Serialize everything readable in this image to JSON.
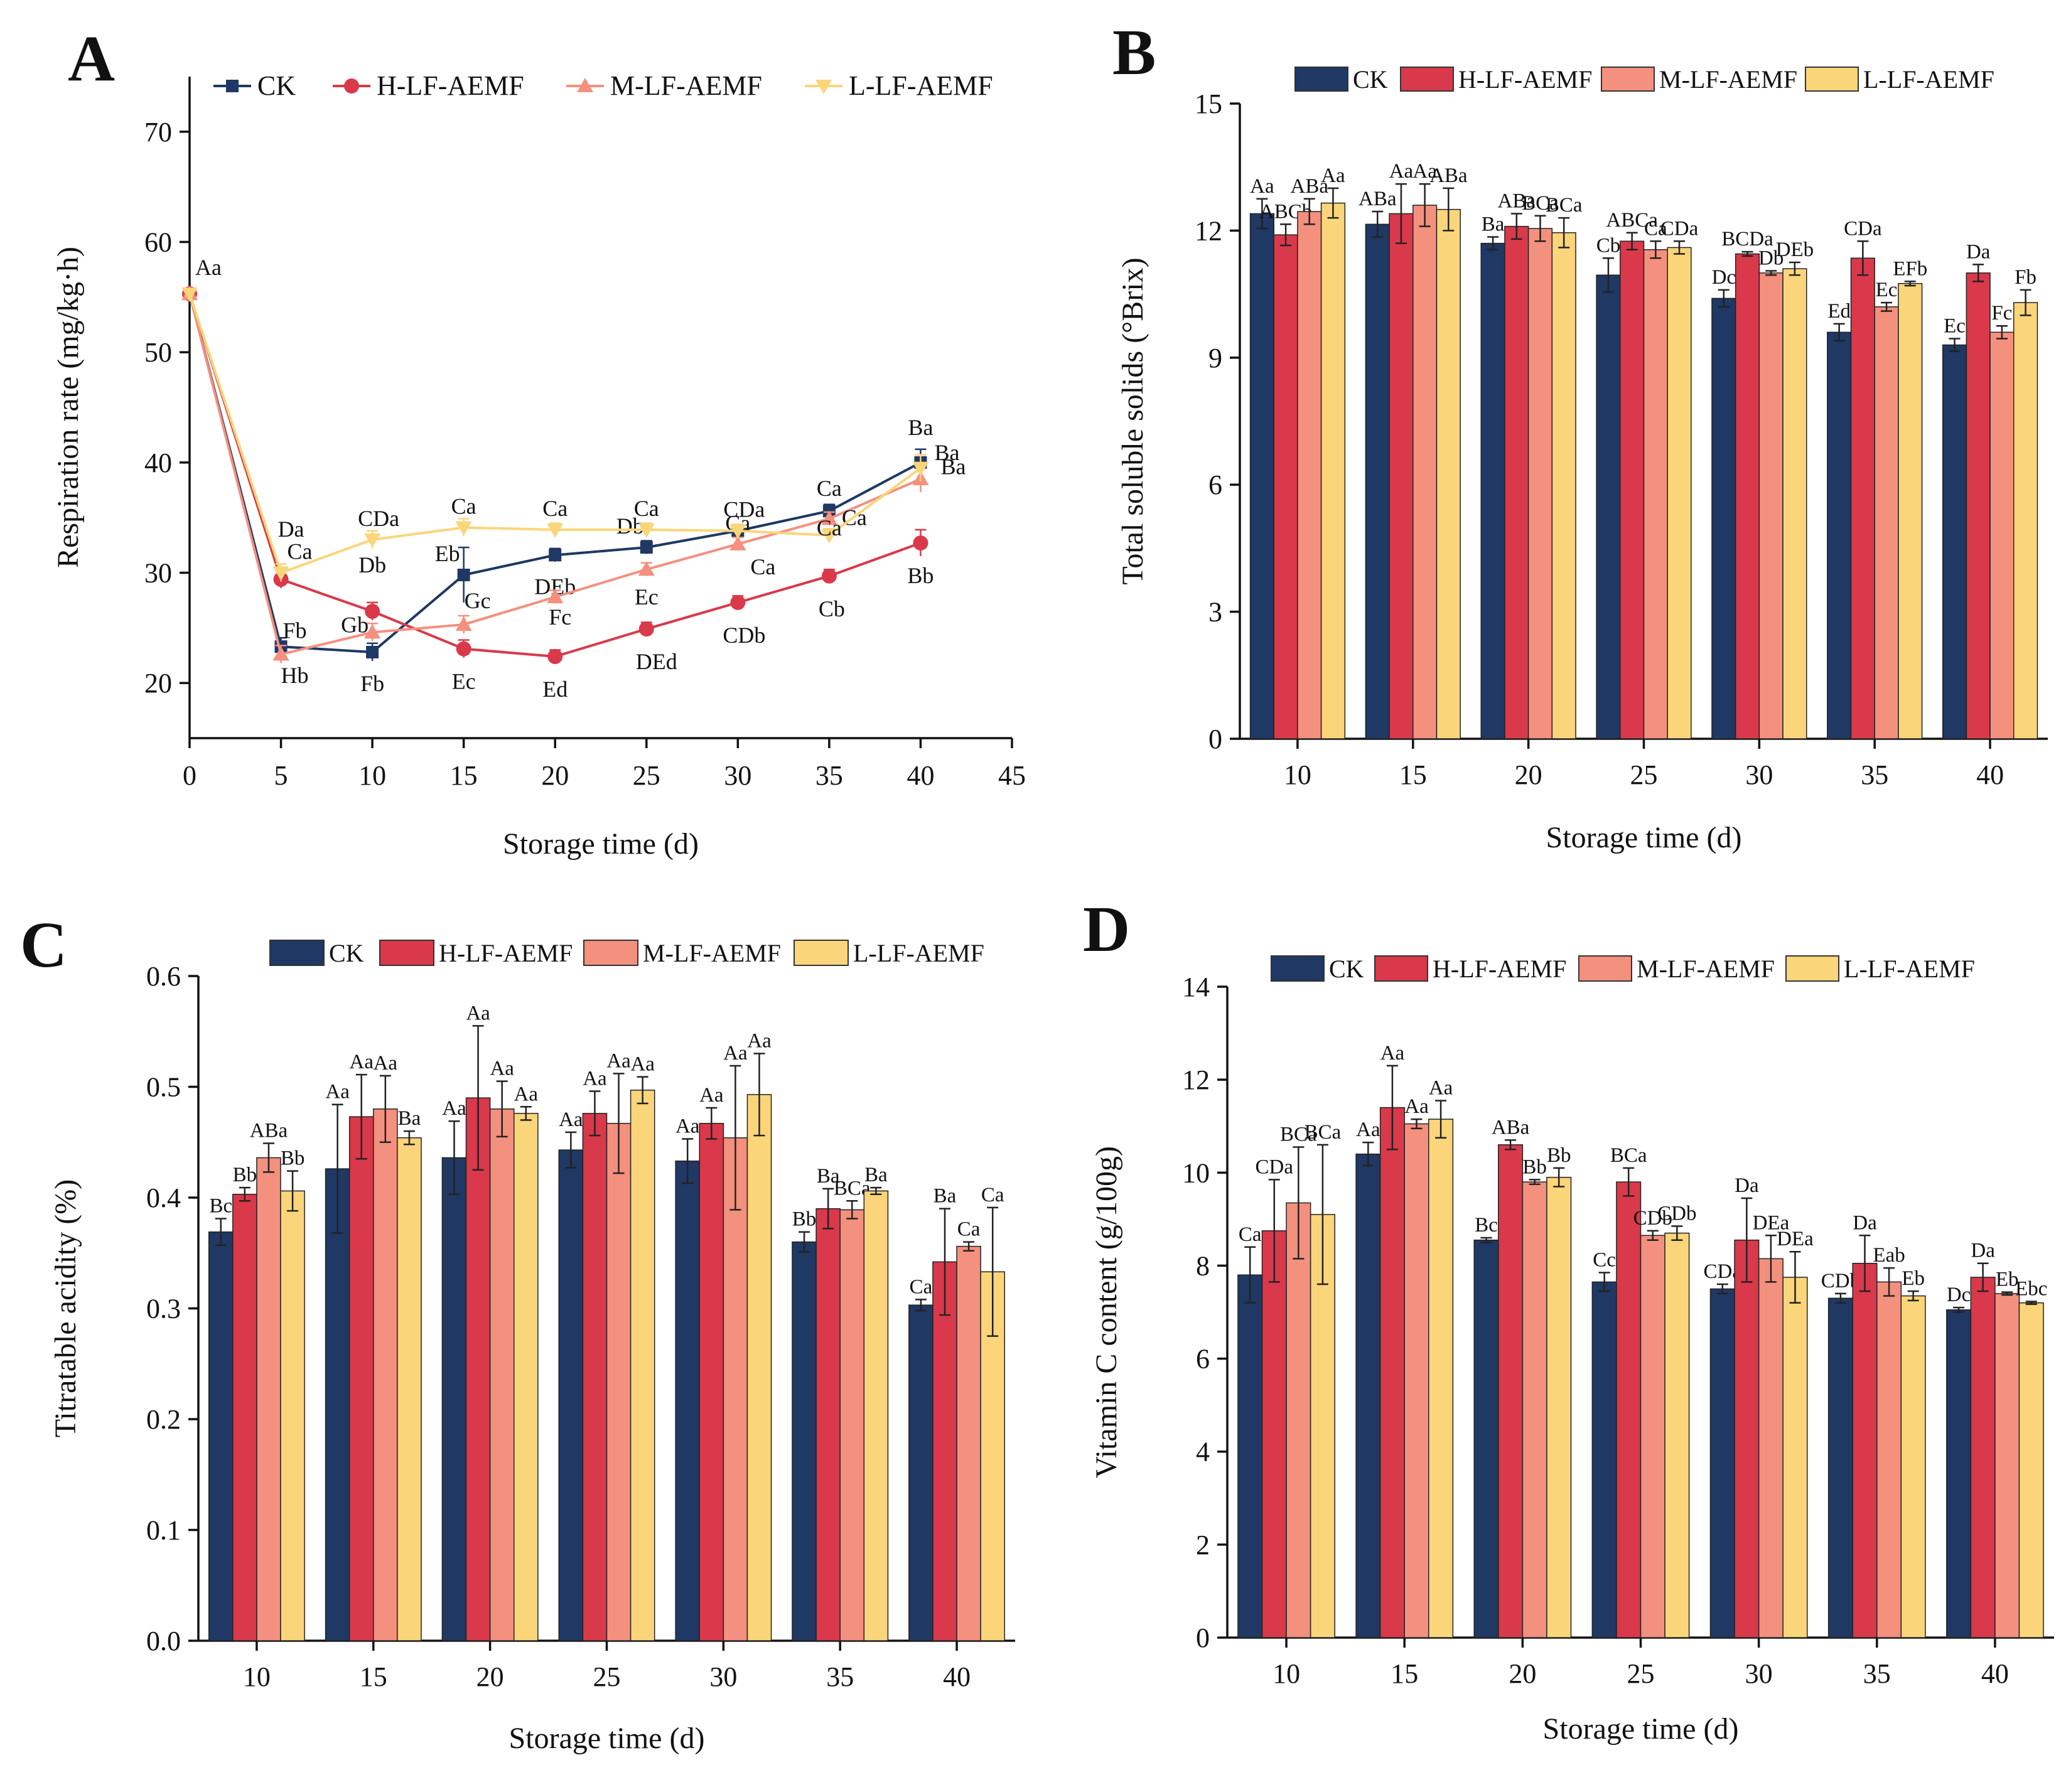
{
  "colors": {
    "CK": "#1f3864",
    "H-LF-AEMF": "#d9394a",
    "M-LF-AEMF": "#f4907e",
    "L-LF-AEMF": "#fbd57a"
  },
  "legend": [
    "CK",
    "H-LF-AEMF",
    "M-LF-AEMF",
    "L-LF-AEMF"
  ],
  "chart_data": [
    {
      "panel": "A",
      "type": "line",
      "xlabel": "Storage time (d)",
      "ylabel": "Respiration rate (mg/kg·h)",
      "xlim": [
        0,
        45
      ],
      "ylim": [
        15,
        75
      ],
      "xticks": [
        "0",
        "5",
        "10",
        "15",
        "20",
        "25",
        "30",
        "35",
        "40",
        "45"
      ],
      "yticks": [
        "20",
        "30",
        "40",
        "50",
        "60",
        "70"
      ],
      "x": [
        0,
        5,
        10,
        15,
        20,
        25,
        30,
        35,
        40
      ],
      "series": [
        {
          "name": "CK",
          "values": [
            55.3,
            23.3,
            22.8,
            29.8,
            31.6,
            32.3,
            33.8,
            35.6,
            40.0
          ],
          "errors": [
            0,
            0.8,
            0.8,
            2.5,
            0.6,
            0.6,
            0.6,
            0.6,
            1.2
          ],
          "labels": [
            "",
            "Hb",
            "Fb",
            "Eb",
            "DEb",
            "Db",
            "Ca",
            "Ca",
            "Ba"
          ]
        },
        {
          "name": "H-LF-AEMF",
          "values": [
            55.3,
            29.4,
            26.5,
            23.1,
            22.4,
            24.9,
            27.3,
            29.7,
            32.7
          ],
          "errors": [
            0,
            0.8,
            0.8,
            0.8,
            0.6,
            0.6,
            0.6,
            0.6,
            1.2
          ],
          "labels": [
            "",
            "Da",
            "Db",
            "Ec",
            "Ed",
            "DEd",
            "CDb",
            "Cb",
            "Bb"
          ]
        },
        {
          "name": "M-LF-AEMF",
          "values": [
            55.3,
            22.6,
            24.6,
            25.3,
            27.8,
            30.3,
            32.6,
            34.9,
            38.5
          ],
          "errors": [
            0,
            0.8,
            0.8,
            0.8,
            0.6,
            0.6,
            0.6,
            0.6,
            1.2
          ],
          "labels": [
            "",
            "Fb",
            "Gb",
            "Gc",
            "Fc",
            "Ec",
            "Ca",
            "Ca",
            "Ba"
          ]
        },
        {
          "name": "L-LF-AEMF",
          "values": [
            55.3,
            30.0,
            33.0,
            34.1,
            33.9,
            33.9,
            33.8,
            33.4,
            39.5
          ],
          "errors": [
            0,
            0.8,
            0.8,
            0.8,
            0.6,
            0.6,
            0.6,
            0.6,
            1.2
          ],
          "labels": [
            "Aa",
            "Ca",
            "CDa",
            "Ca",
            "Ca",
            "Ca",
            "CDa",
            "Ca",
            "Ba"
          ]
        }
      ]
    },
    {
      "panel": "B",
      "type": "bar",
      "xlabel": "Storage time (d)",
      "ylabel": "Total soluble solids (°Brix)",
      "ylim": [
        0,
        15
      ],
      "yticks": [
        "0",
        "3",
        "6",
        "9",
        "12",
        "15"
      ],
      "categories": [
        "10",
        "15",
        "20",
        "25",
        "30",
        "35",
        "40"
      ],
      "series": [
        {
          "name": "CK",
          "values": [
            12.4,
            12.15,
            11.7,
            10.95,
            10.4,
            9.6,
            9.3
          ],
          "errors": [
            0.35,
            0.3,
            0.15,
            0.4,
            0.2,
            0.2,
            0.15
          ],
          "labels": [
            "Aa",
            "ABa",
            "Ba",
            "Cb",
            "Dc",
            "Ed",
            "Ec"
          ]
        },
        {
          "name": "H-LF-AEMF",
          "values": [
            11.9,
            12.4,
            12.1,
            11.75,
            11.45,
            11.35,
            11.0
          ],
          "errors": [
            0.25,
            0.7,
            0.3,
            0.2,
            0.05,
            0.4,
            0.2
          ],
          "labels": [
            "ABCb",
            "Aa",
            "ABa",
            "ABCa",
            "BCDa",
            "CDa",
            "Da"
          ]
        },
        {
          "name": "M-LF-AEMF",
          "values": [
            12.45,
            12.6,
            12.05,
            11.55,
            11.0,
            10.2,
            9.6
          ],
          "errors": [
            0.3,
            0.5,
            0.3,
            0.2,
            0.05,
            0.1,
            0.15
          ],
          "labels": [
            "ABa",
            "Aa",
            "BCa",
            "Ca",
            "Db",
            "Ec",
            "Fc"
          ]
        },
        {
          "name": "L-LF-AEMF",
          "values": [
            12.65,
            12.5,
            11.95,
            11.6,
            11.1,
            10.75,
            10.3
          ],
          "errors": [
            0.35,
            0.5,
            0.35,
            0.15,
            0.15,
            0.05,
            0.3
          ],
          "labels": [
            "Aa",
            "ABa",
            "BCa",
            "CDa",
            "DEb",
            "EFb",
            "Fb"
          ]
        }
      ]
    },
    {
      "panel": "C",
      "type": "bar",
      "xlabel": "Storage time (d)",
      "ylabel": "Titratable acidity (%)",
      "ylim": [
        0,
        0.6
      ],
      "yticks": [
        "0.0",
        "0.1",
        "0.2",
        "0.3",
        "0.4",
        "0.5",
        "0.6"
      ],
      "categories": [
        "10",
        "15",
        "20",
        "25",
        "30",
        "35",
        "40"
      ],
      "series": [
        {
          "name": "CK",
          "values": [
            0.369,
            0.426,
            0.436,
            0.443,
            0.433,
            0.36,
            0.303
          ],
          "errors": [
            0.012,
            0.058,
            0.033,
            0.016,
            0.02,
            0.009,
            0.005
          ],
          "labels": [
            "Bc",
            "Aa",
            "Aa",
            "Aa",
            "Aa",
            "Bb",
            "Ca"
          ]
        },
        {
          "name": "H-LF-AEMF",
          "values": [
            0.403,
            0.473,
            0.49,
            0.476,
            0.467,
            0.39,
            0.342
          ],
          "errors": [
            0.006,
            0.038,
            0.065,
            0.02,
            0.014,
            0.018,
            0.048
          ],
          "labels": [
            "Bb",
            "Aa",
            "Aa",
            "Aa",
            "Aa",
            "Ba",
            "Ba"
          ]
        },
        {
          "name": "M-LF-AEMF",
          "values": [
            0.436,
            0.48,
            0.48,
            0.467,
            0.454,
            0.389,
            0.356
          ],
          "errors": [
            0.013,
            0.03,
            0.025,
            0.045,
            0.065,
            0.008,
            0.004
          ],
          "labels": [
            "ABa",
            "Aa",
            "Aa",
            "Aa",
            "Aa",
            "BCa",
            "Ca"
          ]
        },
        {
          "name": "L-LF-AEMF",
          "values": [
            0.406,
            0.454,
            0.476,
            0.497,
            0.493,
            0.406,
            0.333
          ],
          "errors": [
            0.018,
            0.006,
            0.006,
            0.012,
            0.037,
            0.003,
            0.058
          ],
          "labels": [
            "Bb",
            "Ba",
            "Aa",
            "Aa",
            "Aa",
            "Ba",
            "Ca"
          ]
        }
      ]
    },
    {
      "panel": "D",
      "type": "bar",
      "xlabel": "Storage time (d)",
      "ylabel": "Vitamin C content (g/100g)",
      "ylim": [
        0,
        14
      ],
      "yticks": [
        "0",
        "2",
        "4",
        "6",
        "8",
        "10",
        "12",
        "14"
      ],
      "categories": [
        "10",
        "15",
        "20",
        "25",
        "30",
        "35",
        "40"
      ],
      "series": [
        {
          "name": "CK",
          "values": [
            7.8,
            10.4,
            8.55,
            7.65,
            7.5,
            7.3,
            7.05
          ],
          "errors": [
            0.6,
            0.25,
            0.05,
            0.2,
            0.1,
            0.1,
            0.05
          ],
          "labels": [
            "Ca",
            "Aa",
            "Bc",
            "Cc",
            "CDa",
            "CDb",
            "Dc"
          ]
        },
        {
          "name": "H-LF-AEMF",
          "values": [
            8.75,
            11.4,
            10.6,
            9.8,
            8.55,
            8.05,
            7.75
          ],
          "errors": [
            1.1,
            0.9,
            0.1,
            0.3,
            0.9,
            0.6,
            0.3
          ],
          "labels": [
            "CDa",
            "Aa",
            "ABa",
            "BCa",
            "Da",
            "Da",
            "Da"
          ]
        },
        {
          "name": "M-LF-AEMF",
          "values": [
            9.35,
            11.05,
            9.8,
            8.65,
            8.15,
            7.65,
            7.4
          ],
          "errors": [
            1.2,
            0.1,
            0.05,
            0.1,
            0.5,
            0.3,
            0.03
          ],
          "labels": [
            "BCa",
            "Aa",
            "Bb",
            "CDb",
            "DEa",
            "Eab",
            "Eb"
          ]
        },
        {
          "name": "L-LF-AEMF",
          "values": [
            9.1,
            11.15,
            9.9,
            8.7,
            7.75,
            7.35,
            7.2
          ],
          "errors": [
            1.5,
            0.4,
            0.2,
            0.15,
            0.55,
            0.1,
            0.03
          ],
          "labels": [
            "BCa",
            "Aa",
            "Bb",
            "CDb",
            "DEa",
            "Eb",
            "Ebc"
          ]
        }
      ]
    }
  ],
  "panels": {
    "A": "A",
    "B": "B",
    "C": "C",
    "D": "D"
  }
}
